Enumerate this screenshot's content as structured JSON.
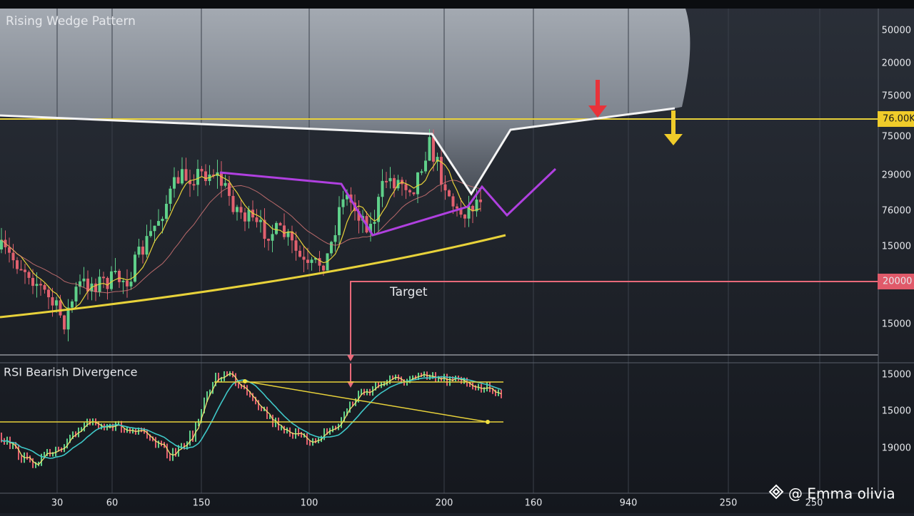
{
  "title": "Rising Wedge Pattern",
  "price_axis": [
    "50000",
    "20000",
    "75000",
    "75000",
    "29000",
    "76000",
    "15000",
    "15000"
  ],
  "price_tags": {
    "resistance": "76.00K",
    "target": "20000"
  },
  "target_label": "Target",
  "rsi": {
    "title": "RSI Bearish Divergence",
    "axis": [
      "15000",
      "15000",
      "19000"
    ]
  },
  "x_axis": [
    "30",
    "60",
    "150",
    "100",
    "200",
    "160",
    "940",
    "250",
    "250"
  ],
  "watermark": "@ Emma olivia"
}
